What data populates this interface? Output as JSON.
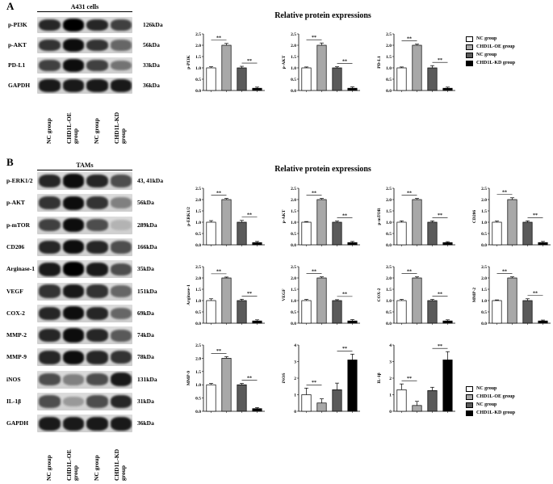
{
  "panel_a": {
    "letter": "A",
    "blot_title": "A431 cells",
    "rows": [
      {
        "label": "p-PI3K",
        "kda": "126kDa",
        "intensity": [
          0.85,
          1.0,
          0.85,
          0.75
        ]
      },
      {
        "label": "p-AKT",
        "kda": "56kDa",
        "intensity": [
          0.8,
          0.95,
          0.8,
          0.6
        ]
      },
      {
        "label": "PD-L1",
        "kda": "33kDa",
        "intensity": [
          0.75,
          0.95,
          0.75,
          0.55
        ]
      },
      {
        "label": "GAPDH",
        "kda": "36kDa",
        "intensity": [
          0.9,
          0.9,
          0.9,
          0.9
        ]
      }
    ],
    "lanes": [
      "NC group",
      "CHD1L-OE\ngroup",
      "NC group",
      "CHD1L-KD\ngroup"
    ],
    "section_title": "Relative protein expressions"
  },
  "panel_b": {
    "letter": "B",
    "blot_title": "TAMs",
    "rows": [
      {
        "label": "p-ERK1/2",
        "kda": "43, 41kDa",
        "intensity": [
          0.85,
          0.95,
          0.85,
          0.7
        ]
      },
      {
        "label": "p-AKT",
        "kda": "56kDa",
        "intensity": [
          0.8,
          0.95,
          0.8,
          0.5
        ]
      },
      {
        "label": "p-mTOR",
        "kda": "289kDa",
        "intensity": [
          0.75,
          0.95,
          0.7,
          0.3
        ]
      },
      {
        "label": "CD206",
        "kda": "166kDa",
        "intensity": [
          0.85,
          0.95,
          0.85,
          0.7
        ]
      },
      {
        "label": "Arginase-1",
        "kda": "35kDa",
        "intensity": [
          0.9,
          1.0,
          0.9,
          0.7
        ]
      },
      {
        "label": "VEGF",
        "kda": "151kDa",
        "intensity": [
          0.8,
          0.9,
          0.8,
          0.6
        ]
      },
      {
        "label": "COX-2",
        "kda": "69kDa",
        "intensity": [
          0.85,
          0.95,
          0.85,
          0.6
        ]
      },
      {
        "label": "MMP-2",
        "kda": "74kDa",
        "intensity": [
          0.85,
          0.95,
          0.85,
          0.65
        ]
      },
      {
        "label": "MMP-9",
        "kda": "78kDa",
        "intensity": [
          0.85,
          0.95,
          0.85,
          0.8
        ]
      },
      {
        "label": "iNOS",
        "kda": "131kDa",
        "intensity": [
          0.7,
          0.5,
          0.7,
          0.9
        ]
      },
      {
        "label": "IL-1β",
        "kda": "31kDa",
        "intensity": [
          0.7,
          0.4,
          0.7,
          0.85
        ]
      },
      {
        "label": "GAPDH",
        "kda": "36kDa",
        "intensity": [
          0.9,
          0.9,
          0.9,
          0.9
        ]
      }
    ],
    "lanes": [
      "NC group",
      "CHD1L-OE\ngroup",
      "NC group",
      "CHD1L-KD\ngroup"
    ],
    "section_title": "Relative protein expressions"
  },
  "legend": {
    "items": [
      "NC group",
      "CHD1L-OE  group",
      "NC group",
      "CHD1L-KD group"
    ],
    "colors": [
      "#ffffff",
      "#a8a8a8",
      "#5a5a5a",
      "#000000"
    ]
  },
  "chart_data": [
    {
      "type": "bar",
      "ylabel": "p-PI3K",
      "ylim": [
        0,
        2.5
      ],
      "yticks": [
        "0.0",
        "0.5",
        "1.0",
        "1.5",
        "2.0",
        "2.5"
      ],
      "values": [
        1.0,
        2.0,
        1.0,
        0.1
      ],
      "errors": [
        0.05,
        0.08,
        0.07,
        0.05
      ],
      "sig": [
        "**",
        "**"
      ]
    },
    {
      "type": "bar",
      "ylabel": "p-AKT",
      "ylim": [
        0,
        2.5
      ],
      "yticks": [
        "0.0",
        "0.5",
        "1.0",
        "1.5",
        "2.0",
        "2.5"
      ],
      "values": [
        1.0,
        2.0,
        1.0,
        0.1
      ],
      "errors": [
        0.04,
        0.1,
        0.05,
        0.06
      ],
      "sig": [
        "**",
        "**"
      ]
    },
    {
      "type": "bar",
      "ylabel": "PD-L1",
      "ylim": [
        0,
        2.5
      ],
      "yticks": [
        "0.0",
        "0.5",
        "1.0",
        "1.5",
        "2.0",
        "2.5"
      ],
      "values": [
        1.0,
        2.0,
        1.0,
        0.1
      ],
      "errors": [
        0.04,
        0.05,
        0.1,
        0.05
      ],
      "sig": [
        "**",
        "**"
      ]
    },
    {
      "type": "bar",
      "ylabel": "p-ERK1/2",
      "ylim": [
        0,
        2.5
      ],
      "yticks": [
        "0.0",
        "0.5",
        "1.0",
        "1.5",
        "2.0",
        "2.5"
      ],
      "values": [
        1.0,
        2.0,
        1.0,
        0.1
      ],
      "errors": [
        0.07,
        0.05,
        0.08,
        0.05
      ],
      "sig": [
        "**",
        "**"
      ]
    },
    {
      "type": "bar",
      "ylabel": "p-AKT",
      "ylim": [
        0,
        2.5
      ],
      "yticks": [
        "0.0",
        "0.5",
        "1.0",
        "1.5",
        "2.0",
        "2.5"
      ],
      "values": [
        1.0,
        2.0,
        1.0,
        0.1
      ],
      "errors": [
        0.03,
        0.05,
        0.05,
        0.05
      ],
      "sig": [
        "**",
        "**"
      ]
    },
    {
      "type": "bar",
      "ylabel": "p-mTOR",
      "ylim": [
        0,
        2.5
      ],
      "yticks": [
        "0.0",
        "0.5",
        "1.0",
        "1.5",
        "2.0",
        "2.5"
      ],
      "values": [
        1.0,
        2.0,
        1.0,
        0.1
      ],
      "errors": [
        0.06,
        0.05,
        0.06,
        0.04
      ],
      "sig": [
        "**",
        "**"
      ]
    },
    {
      "type": "bar",
      "ylabel": "CD206",
      "ylim": [
        0,
        2.5
      ],
      "yticks": [
        "0.0",
        "0.5",
        "1.0",
        "1.5",
        "2.0",
        "2.5"
      ],
      "values": [
        1.0,
        2.0,
        1.0,
        0.1
      ],
      "errors": [
        0.05,
        0.08,
        0.06,
        0.05
      ],
      "sig": [
        "**",
        "**"
      ]
    },
    {
      "type": "bar",
      "ylabel": "Arginase-1",
      "ylim": [
        0,
        2.5
      ],
      "yticks": [
        "0.0",
        "0.5",
        "1.0",
        "1.5",
        "2.0",
        "2.5"
      ],
      "values": [
        1.0,
        2.0,
        1.0,
        0.1
      ],
      "errors": [
        0.08,
        0.04,
        0.06,
        0.05
      ],
      "sig": [
        "**",
        "**"
      ]
    },
    {
      "type": "bar",
      "ylabel": "VEGF",
      "ylim": [
        0,
        2.5
      ],
      "yticks": [
        "0.0",
        "0.5",
        "1.0",
        "1.5",
        "2.0",
        "2.5"
      ],
      "values": [
        1.0,
        2.0,
        1.0,
        0.1
      ],
      "errors": [
        0.05,
        0.05,
        0.04,
        0.06
      ],
      "sig": [
        "**",
        "**"
      ]
    },
    {
      "type": "bar",
      "ylabel": "COX-2",
      "ylim": [
        0,
        2.5
      ],
      "yticks": [
        "0.0",
        "0.5",
        "1.0",
        "1.5",
        "2.0",
        "2.5"
      ],
      "values": [
        1.0,
        2.0,
        1.0,
        0.1
      ],
      "errors": [
        0.05,
        0.05,
        0.05,
        0.05
      ],
      "sig": [
        "**",
        "**"
      ]
    },
    {
      "type": "bar",
      "ylabel": "MMP-2",
      "ylim": [
        0,
        2.5
      ],
      "yticks": [
        "0.0",
        "0.5",
        "1.0",
        "1.5",
        "2.0",
        "2.5"
      ],
      "values": [
        1.0,
        2.0,
        1.0,
        0.1
      ],
      "errors": [
        0.03,
        0.05,
        0.08,
        0.04
      ],
      "sig": [
        "**",
        "**"
      ]
    },
    {
      "type": "bar",
      "ylabel": "MMP-9",
      "ylim": [
        0,
        2.5
      ],
      "yticks": [
        "0.0",
        "0.5",
        "1.0",
        "1.5",
        "2.0",
        "2.5"
      ],
      "values": [
        1.0,
        2.0,
        1.0,
        0.1
      ],
      "errors": [
        0.05,
        0.06,
        0.05,
        0.04
      ],
      "sig": [
        "**",
        "**"
      ]
    },
    {
      "type": "bar",
      "ylabel": "iNOS",
      "ylim": [
        0,
        4
      ],
      "yticks": [
        "0",
        "1",
        "2",
        "3",
        "4"
      ],
      "values": [
        1.0,
        0.5,
        1.3,
        3.1
      ],
      "errors": [
        0.4,
        0.25,
        0.4,
        0.35
      ],
      "sig": [
        "**",
        "**"
      ]
    },
    {
      "type": "bar",
      "ylabel": "IL-1β",
      "ylim": [
        0,
        4
      ],
      "yticks": [
        "0",
        "1",
        "2",
        "3",
        "4"
      ],
      "values": [
        1.3,
        0.35,
        1.25,
        3.1
      ],
      "errors": [
        0.35,
        0.25,
        0.2,
        0.5
      ],
      "sig": [
        "**",
        "**"
      ]
    }
  ]
}
